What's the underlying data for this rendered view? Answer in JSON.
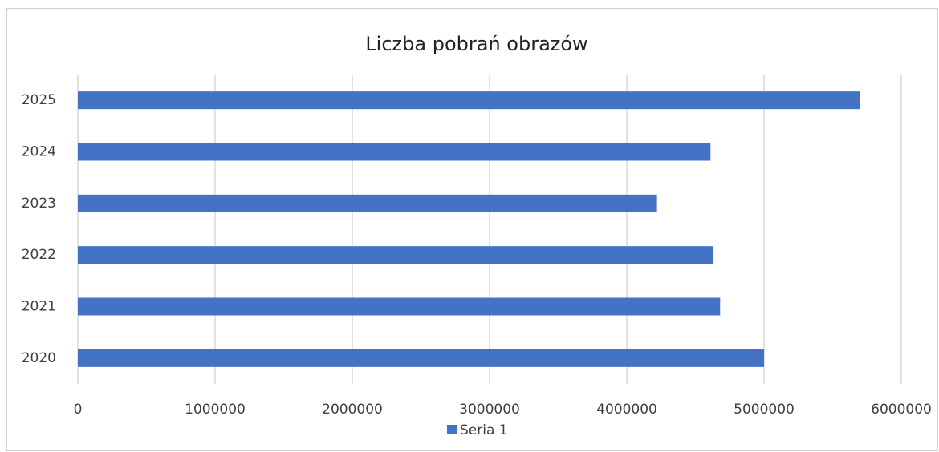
{
  "chart_data": {
    "type": "barh",
    "title": "Liczba pobrań obrazów",
    "categories": [
      "2020",
      "2021",
      "2022",
      "2023",
      "2024",
      "2025"
    ],
    "series": [
      {
        "name": "Seria 1",
        "color": "#4472c4",
        "values": [
          5000000,
          4680000,
          4630000,
          4220000,
          4610000,
          5700000
        ]
      }
    ],
    "xlim": [
      0,
      6000000
    ],
    "xticks": [
      0,
      1000000,
      2000000,
      3000000,
      4000000,
      5000000,
      6000000
    ],
    "grid": true,
    "legend": "bottom"
  }
}
